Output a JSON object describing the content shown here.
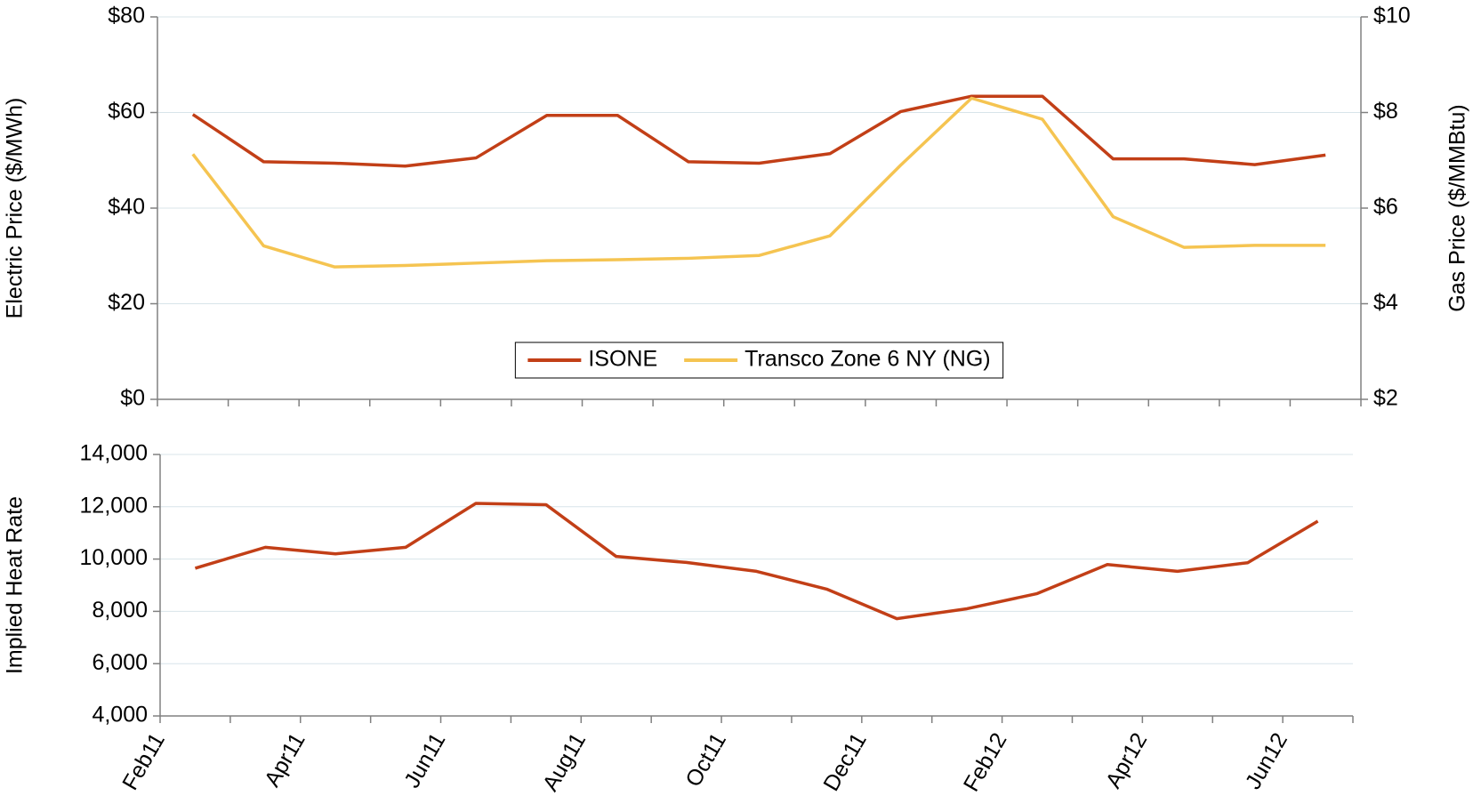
{
  "chart_data": [
    {
      "type": "line",
      "y_label": "Electric Price ($/MWh)",
      "y2_label": "Gas Price ($/MMBtu)",
      "categories": [
        null,
        null,
        null,
        null,
        null,
        null,
        null,
        null,
        null,
        null,
        null,
        null,
        null,
        null,
        null,
        null,
        null
      ],
      "series": [
        {
          "name": "ISONE",
          "color": "#c23f17",
          "values": [
            59.6,
            49.7,
            49.4,
            48.8,
            50.5,
            59.4,
            59.4,
            49.7,
            49.4,
            51.4,
            60.2,
            63.4,
            63.4,
            50.3,
            50.3,
            49.1,
            51.1
          ]
        },
        {
          "name": "Transco Zone 6 NY (NG)",
          "color": "#f5c451",
          "axis": "y2",
          "values": [
            7.13,
            5.21,
            4.77,
            4.8,
            4.85,
            4.9,
            4.92,
            4.95,
            5.01,
            5.42,
            6.9,
            8.3,
            7.86,
            5.82,
            5.18,
            5.22,
            5.22
          ]
        }
      ],
      "ylim": [
        0,
        80
      ],
      "yticks": [
        {
          "value": 0,
          "label": "$0"
        },
        {
          "value": 20,
          "label": "$20"
        },
        {
          "value": 40,
          "label": "$40"
        },
        {
          "value": 60,
          "label": "$60"
        },
        {
          "value": 80,
          "label": "$80"
        }
      ],
      "y2lim": [
        2,
        10
      ],
      "y2ticks": [
        {
          "value": 2,
          "label": "$2"
        },
        {
          "value": 4,
          "label": "$4"
        },
        {
          "value": 6,
          "label": "$6"
        },
        {
          "value": 8,
          "label": "$8"
        },
        {
          "value": 10,
          "label": "$10"
        }
      ],
      "grid": true,
      "legend": "bottom"
    },
    {
      "type": "line",
      "y_label": "Implied Heat Rate",
      "categories": [
        "Feb11",
        null,
        "Apr11",
        null,
        "Jun11",
        null,
        "Aug11",
        null,
        "Oct11",
        null,
        "Dec11",
        null,
        "Feb12",
        null,
        "Apr12",
        null,
        "Jun12"
      ],
      "values": [
        9650,
        10450,
        10200,
        10450,
        12130,
        12080,
        10100,
        9870,
        9530,
        8850,
        7720,
        8100,
        8680,
        9790,
        9530,
        9860,
        11450
      ],
      "color": "#c23f17",
      "ylim": [
        4000,
        14000
      ],
      "yticks": [
        {
          "value": 4000,
          "label": "4,000"
        },
        {
          "value": 6000,
          "label": "6,000"
        },
        {
          "value": 8000,
          "label": "8,000"
        },
        {
          "value": 10000,
          "label": "10,000"
        },
        {
          "value": 12000,
          "label": "12,000"
        },
        {
          "value": 14000,
          "label": "14,000"
        }
      ],
      "grid": true
    }
  ]
}
